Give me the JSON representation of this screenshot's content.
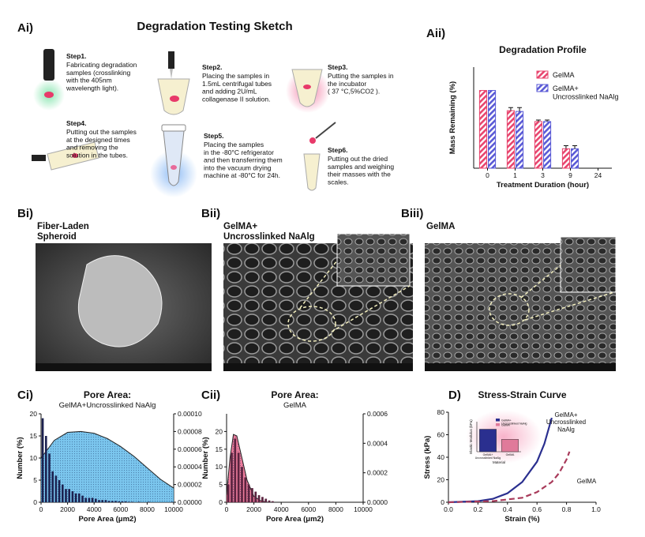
{
  "figure": {
    "panel_a1": {
      "label": "Ai)",
      "title": "Degradation Testing Sketch",
      "steps": [
        {
          "name": "Step1.",
          "text": "Fabricating degradation\nsamples (crosslinking\nwith the 405nm\nwavelength light)."
        },
        {
          "name": "Step2.",
          "text": "Placing the samples in\n1.5mL centrifugal tubes\nand adding 2U/mL\ncollagenase II solution."
        },
        {
          "name": "Step3.",
          "text": "Putting  the samples in\nthe incubator\n( 37 °C,5%CO2 )."
        },
        {
          "name": "Step4.",
          "text": "Putting out the samples\nat the designed times\nand removing the\nsolution in the tubes."
        },
        {
          "name": "Step5.",
          "text": "Placing the samples\nin the -80°C refrigerator\nand then transferring them\ninto the vacuum drying\nmachine at -80°C for 24h."
        },
        {
          "name": "Step6.",
          "text": "Putting out the dried\nsamples and weighing\ntheir masses with the\nscales."
        }
      ]
    },
    "panel_a2": {
      "label": "Aii)"
    },
    "panel_b": [
      {
        "label": "Bi)",
        "title": "Fiber-Laden\nSpheroid"
      },
      {
        "label": "Bii)",
        "title": "GelMA+\nUncrosslinked NaAlg"
      },
      {
        "label": "Biii)",
        "title": "GelMA"
      }
    ],
    "panel_c1": {
      "label": "Ci)"
    },
    "panel_c2": {
      "label": "Cii)"
    },
    "panel_d": {
      "label": "D)"
    }
  },
  "chart_data": [
    {
      "type": "bar",
      "title": "Degradation Profile",
      "xlabel": "Treatment Duration (hour)",
      "ylabel": "Mass Remaining (%)",
      "categories": [
        "0",
        "1",
        "3",
        "9",
        "24"
      ],
      "ylim": [
        0,
        130
      ],
      "series": [
        {
          "name": "GelMA",
          "color": "#e8456e",
          "values": [
            100,
            74,
            60,
            25,
            null
          ],
          "errors": [
            0,
            4,
            2,
            4,
            null
          ]
        },
        {
          "name": "GelMA+\nUncrosslinked NaAlg",
          "color": "#5a5ad6",
          "values": [
            100,
            73,
            60,
            25,
            null
          ],
          "errors": [
            0,
            5,
            2,
            4,
            null
          ]
        }
      ]
    },
    {
      "type": "histogram",
      "title": "Pore Area:",
      "subtitle": "GelMA+Uncrosslinked NaAlg",
      "xlabel": "Pore Area (μm2)",
      "ylabel": "Number (%)",
      "xlim": [
        0,
        10000
      ],
      "xticks": [
        0,
        2000,
        4000,
        6000,
        8000,
        10000
      ],
      "ylim": [
        0,
        20
      ],
      "yticks": [
        0,
        5,
        10,
        15,
        20
      ],
      "y2lim": [
        0,
        0.0001
      ],
      "y2ticks": [
        {
          "value": 0,
          "label": "0.00000"
        },
        {
          "value": 2e-05,
          "label": "0.00002"
        },
        {
          "value": 4e-05,
          "label": "0.00004"
        },
        {
          "value": 6e-05,
          "label": "0.00006"
        },
        {
          "value": 8e-05,
          "label": "0.00008"
        },
        {
          "value": 0.0001,
          "label": "0.00010"
        }
      ],
      "color": "#1c2150",
      "bins": [
        0,
        250,
        500,
        750,
        1000,
        1250,
        1500,
        1750,
        2000,
        2250,
        2500,
        2750,
        3000,
        3250,
        3500,
        3750,
        4000,
        4250,
        4500,
        4750,
        5000,
        5250,
        5500,
        5750,
        6000,
        6250,
        6500,
        6750,
        7000,
        7250,
        7500,
        7750,
        8000,
        8250,
        8500,
        8750,
        9000,
        9250,
        9500,
        9750,
        10000
      ],
      "values": [
        19,
        15,
        11,
        7,
        6,
        5,
        4,
        3,
        3,
        2.5,
        2,
        2,
        1.5,
        1,
        1,
        1,
        0.8,
        0.5,
        0.5,
        0.5,
        0.3,
        0.3,
        0.3,
        0.2,
        0.2,
        0.2,
        0.1,
        0.1,
        0,
        0.1,
        0,
        0,
        0.1,
        0,
        0,
        0,
        0,
        0,
        0,
        0.1
      ],
      "series": [
        {
          "axis": "y2",
          "color": "#4fb3e8",
          "x": [
            0,
            1000,
            2000,
            3000,
            4000,
            5000,
            6000,
            7000,
            8000,
            9000,
            10000
          ],
          "values": [
            5e-05,
            7e-05,
            7.9e-05,
            8e-05,
            7.8e-05,
            7.2e-05,
            6.3e-05,
            5.2e-05,
            3.9e-05,
            2.6e-05,
            1.6e-05
          ]
        }
      ]
    },
    {
      "type": "histogram",
      "title": "Pore Area:",
      "subtitle": "GelMA",
      "xlabel": "Pore Area (μm2)",
      "ylabel": "Number (%)",
      "xlim": [
        0,
        10000
      ],
      "xticks": [
        0,
        2000,
        4000,
        6000,
        8000,
        10000
      ],
      "ylim": [
        0,
        25
      ],
      "yticks": [
        0,
        5,
        10,
        15,
        20
      ],
      "y2lim": [
        0,
        0.0006
      ],
      "y2ticks": [
        {
          "value": 0,
          "label": "0.0000"
        },
        {
          "value": 0.0002,
          "label": "0.0002"
        },
        {
          "value": 0.0004,
          "label": "0.0004"
        },
        {
          "value": 0.0006,
          "label": "0.0006"
        }
      ],
      "color": "#5b2440",
      "bins": [
        0,
        250,
        500,
        750,
        1000,
        1250,
        1500,
        1750,
        2000,
        2250,
        2500,
        2750,
        3000,
        3250,
        3500
      ],
      "values": [
        5,
        14,
        18,
        14,
        10,
        7,
        5,
        4,
        3,
        2,
        1.5,
        1,
        0.5,
        0.3
      ],
      "series": [
        {
          "axis": "y2",
          "color": "#e8507a",
          "x": [
            0,
            250,
            500,
            750,
            1000,
            1500,
            2000,
            2500,
            3000
          ],
          "values": [
            5e-05,
            0.0003,
            0.00046,
            0.00045,
            0.00035,
            0.00015,
            4e-05,
            1e-05,
            0
          ]
        }
      ]
    },
    {
      "type": "line",
      "title": "Stress-Strain Curve",
      "xlabel": "Strain (%)",
      "ylabel": "Stress (kPa)",
      "xlim": [
        0,
        1
      ],
      "xticks": [
        {
          "value": 0,
          "label": "0.0"
        },
        0.2,
        0.4,
        0.6,
        0.8,
        {
          "value": 1,
          "label": "1.0"
        }
      ],
      "ylim": [
        0,
        80
      ],
      "yticks": [
        0,
        20,
        40,
        60,
        80
      ],
      "series": [
        {
          "name": "GelMA+\nUncrosslinked\nNaAlg",
          "color": "#2a2f8f",
          "dashed": false,
          "x": [
            0,
            0.2,
            0.3,
            0.4,
            0.5,
            0.6,
            0.65,
            0.7
          ],
          "values": [
            0,
            1,
            3,
            8,
            18,
            36,
            52,
            75
          ]
        },
        {
          "name": "GelMA",
          "color": "#a83a5a",
          "dashed": true,
          "x": [
            0,
            0.3,
            0.5,
            0.6,
            0.7,
            0.75,
            0.8,
            0.82
          ],
          "values": [
            0,
            1,
            4,
            9,
            18,
            26,
            38,
            45
          ]
        }
      ],
      "inset": {
        "ylabel": "Elastic Modulus (kPa)",
        "xlabel": "Material",
        "ylim": [
          0,
          8
        ],
        "categories": [
          "GelMA+\nUncrosslinked NaAlg",
          "GelMA"
        ],
        "values": [
          6,
          3.3
        ],
        "colors": [
          "#2a2f8f",
          "#e07a9a"
        ]
      }
    }
  ]
}
